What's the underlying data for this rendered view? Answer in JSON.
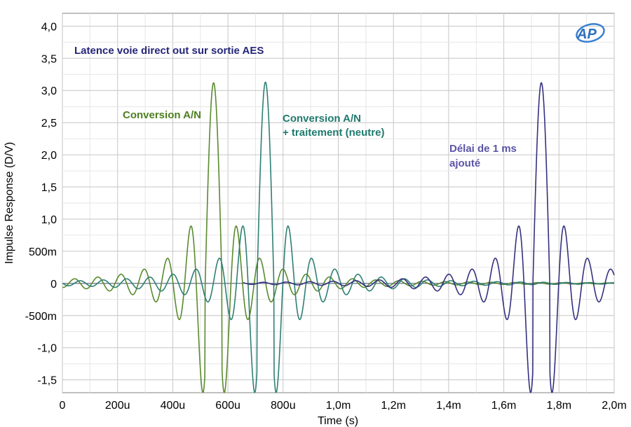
{
  "chart_data": {
    "type": "line",
    "title": "Latence voie direct out sur sortie AES",
    "xlabel": "Time (s)",
    "ylabel": "Impulse Response (D/V)",
    "xlim": [
      0,
      0.002
    ],
    "ylim": [
      -1.7,
      4.2
    ],
    "grid": true,
    "x_tick_values": [
      0,
      0.0002,
      0.0004,
      0.0006,
      0.0008,
      0.001,
      0.0012,
      0.0014,
      0.0016,
      0.0018,
      0.002
    ],
    "x_tick_labels": [
      "0",
      "200u",
      "400u",
      "600u",
      "800u",
      "1,0m",
      "1,2m",
      "1,4m",
      "1,6m",
      "1,8m",
      "2,0m"
    ],
    "y_tick_values": [
      4.0,
      3.5,
      3.0,
      2.5,
      2.0,
      1.5,
      1.0,
      0.5,
      0,
      -0.5,
      -1.0,
      -1.5
    ],
    "y_tick_labels": [
      "4,0",
      "3,5",
      "3,0",
      "2,5",
      "2,0",
      "1,5",
      "1,0",
      "500m",
      "0",
      "-500m",
      "-1,0",
      "-1,5"
    ],
    "series": [
      {
        "color": "#5a8a2e",
        "peak_time": 0.000548,
        "peak_value": 3.12,
        "period": 8.4e-05,
        "main_lobe_width": 3.05e-05,
        "x_range": [
          0,
          0.002
        ]
      },
      {
        "color": "#2f7f74",
        "peak_time": 0.000736,
        "peak_value": 3.13,
        "period": 8.4e-05,
        "main_lobe_width": 3.05e-05,
        "x_range": [
          0,
          0.002
        ]
      },
      {
        "color": "#35317f",
        "peak_time": 0.001736,
        "peak_value": 3.12,
        "period": 8.4e-05,
        "main_lobe_width": 3.05e-05,
        "x_range": [
          0.000655,
          0.002
        ]
      }
    ],
    "annotations": [
      {
        "text": "Latence voie direct out sur sortie AES",
        "color": "#26267a"
      },
      {
        "text": "Conversion A/N",
        "color": "#4d7f1f"
      },
      {
        "text": "Conversion A/N",
        "color": "#1f7a6e"
      },
      {
        "text": "+ traitement (neutre)",
        "color": "#1f7a6e"
      },
      {
        "text": "Délai de 1 ms",
        "color": "#5a55a8"
      },
      {
        "text": "ajouté",
        "color": "#5a55a8"
      }
    ],
    "logo": "AP"
  }
}
